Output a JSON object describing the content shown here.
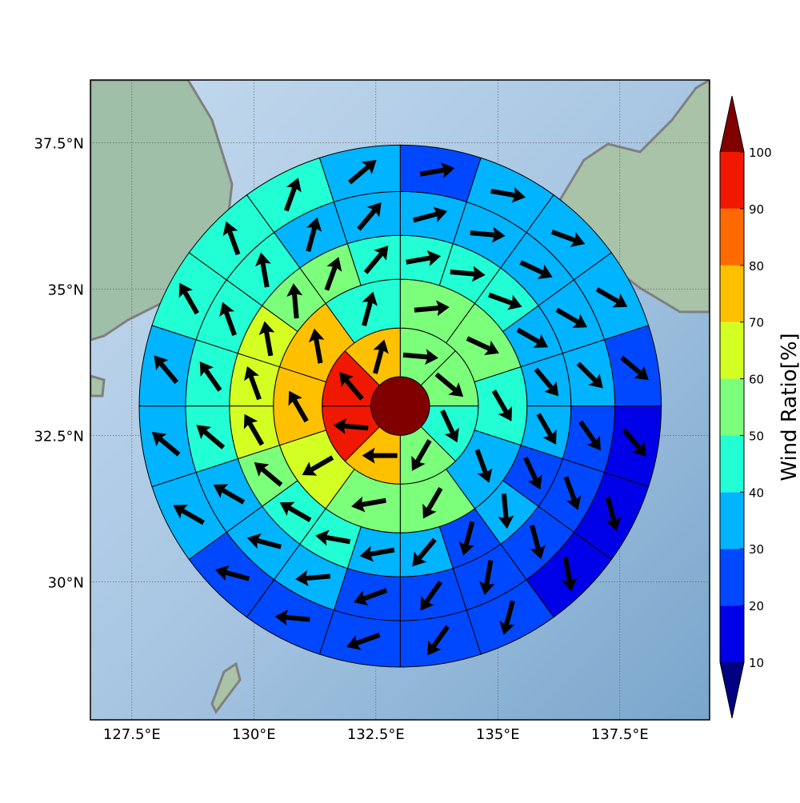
{
  "chart_data": {
    "type": "polar-sector",
    "xlim": [
      126.65,
      139.34
    ],
    "ylim": [
      27.64,
      38.57
    ],
    "xticks": [
      {
        "value": 127.5,
        "label": "127.5°E"
      },
      {
        "value": 130,
        "label": "130°E"
      },
      {
        "value": 132.5,
        "label": "132.5°E"
      },
      {
        "value": 135,
        "label": "135°E"
      },
      {
        "value": 137.5,
        "label": "137.5°E"
      }
    ],
    "yticks": [
      {
        "value": 30,
        "label": "30°N"
      },
      {
        "value": 32.5,
        "label": "32.5°N"
      },
      {
        "value": 35,
        "label": "35°N"
      },
      {
        "value": 37.5,
        "label": "37.5°N"
      }
    ],
    "grid": true,
    "center": [
      133,
      33
    ],
    "ring_edges": [
      0.6,
      1.6,
      2.6,
      3.5,
      4.4,
      5.35
    ],
    "center_value": 105,
    "rings": [
      {
        "values": [
          55,
          55,
          45,
          55,
          75,
          95,
          95,
          75
        ],
        "directions": [
          95,
          130,
          155,
          210,
          270,
          275,
          320,
          15
        ]
      },
      {
        "values": [
          55,
          55,
          45,
          35,
          55,
          55,
          65,
          75,
          75,
          45
        ],
        "directions": [
          85,
          115,
          150,
          160,
          210,
          260,
          240,
          330,
          350,
          15
        ]
      },
      {
        "values": [
          45,
          45,
          45,
          35,
          35,
          35,
          25,
          35,
          25,
          35,
          35,
          45,
          45,
          55,
          65,
          65,
          65,
          55,
          55,
          45
        ],
        "directions": [
          80,
          95,
          110,
          120,
          140,
          150,
          155,
          175,
          195,
          220,
          260,
          280,
          300,
          310,
          330,
          340,
          350,
          355,
          20,
          40
        ]
      },
      {
        "values": [
          35,
          35,
          35,
          35,
          35,
          25,
          25,
          25,
          25,
          25,
          25,
          35,
          35,
          35,
          45,
          45,
          45,
          45,
          35,
          35
        ],
        "directions": [
          75,
          95,
          115,
          120,
          135,
          145,
          160,
          165,
          190,
          215,
          250,
          265,
          285,
          300,
          310,
          325,
          340,
          350,
          15,
          40
        ]
      },
      {
        "values": [
          25,
          35,
          35,
          35,
          25,
          15,
          15,
          15,
          25,
          25,
          25,
          25,
          25,
          35,
          35,
          35,
          45,
          45,
          45,
          35
        ],
        "directions": [
          80,
          100,
          110,
          120,
          130,
          140,
          165,
          170,
          195,
          215,
          250,
          275,
          285,
          300,
          310,
          320,
          330,
          340,
          20,
          50
        ]
      }
    ],
    "colorbar": {
      "label": "Wind Ratio[%]",
      "ticks": [
        10,
        20,
        30,
        40,
        50,
        60,
        70,
        80,
        90,
        100
      ],
      "colors": [
        "#0000e8",
        "#0048ff",
        "#00b4ff",
        "#22ffd4",
        "#7cff7a",
        "#d4ff22",
        "#ffc000",
        "#ff6a00",
        "#f01800"
      ],
      "under": "#000080",
      "over": "#800000"
    }
  }
}
